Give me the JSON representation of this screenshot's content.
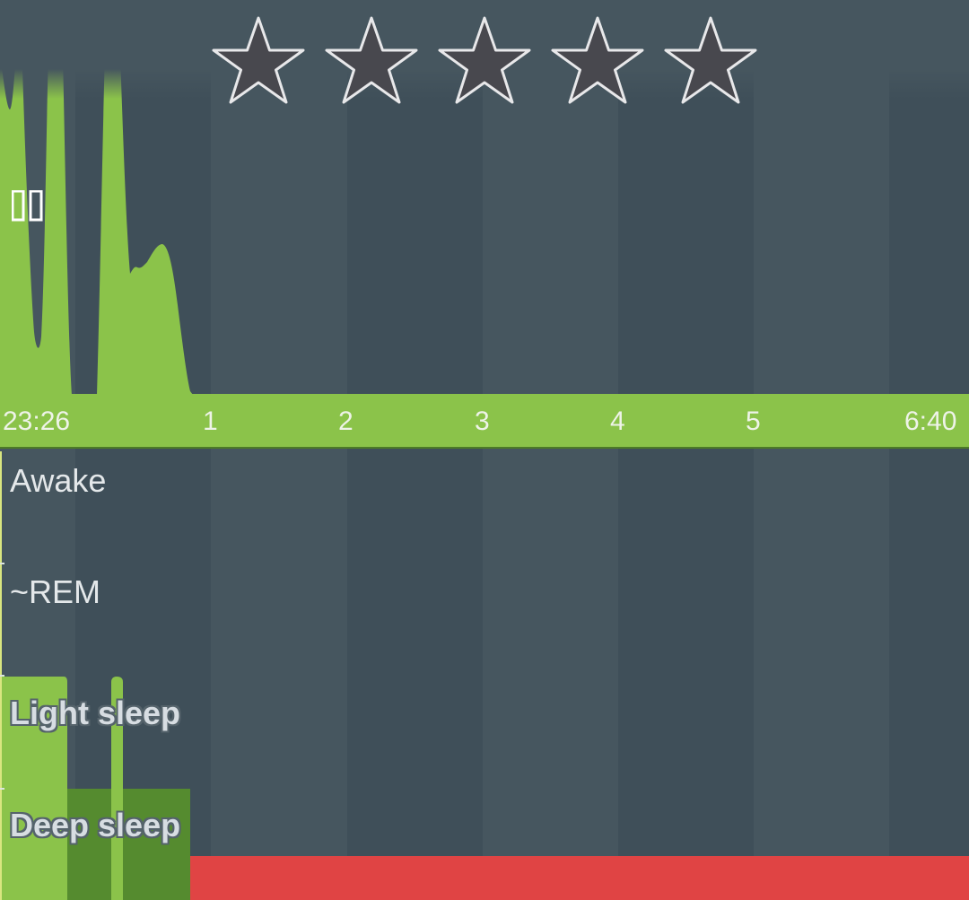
{
  "rating": {
    "stars": [
      {
        "name": "star-1"
      },
      {
        "name": "star-2"
      },
      {
        "name": "star-3"
      },
      {
        "name": "star-4"
      },
      {
        "name": "star-5"
      }
    ],
    "filled_count": 0,
    "star_color": "#48484e",
    "star_outline": "#e8e8ea"
  },
  "colors": {
    "accent_green": "#8bc34a",
    "deep_green": "#558b2f",
    "awake_red": "#e04444",
    "background": "#46565f",
    "stripe_dark": "#3f4f59"
  },
  "time_axis": {
    "ticks": [
      "23:26",
      "1",
      "2",
      "3",
      "4",
      "5",
      "6:40"
    ]
  },
  "stages": {
    "awake": "Awake",
    "rem": "~REM",
    "light": "Light sleep",
    "deep": "Deep sleep"
  },
  "icons": {
    "pause": "pause-icon",
    "star": "star-icon"
  }
}
